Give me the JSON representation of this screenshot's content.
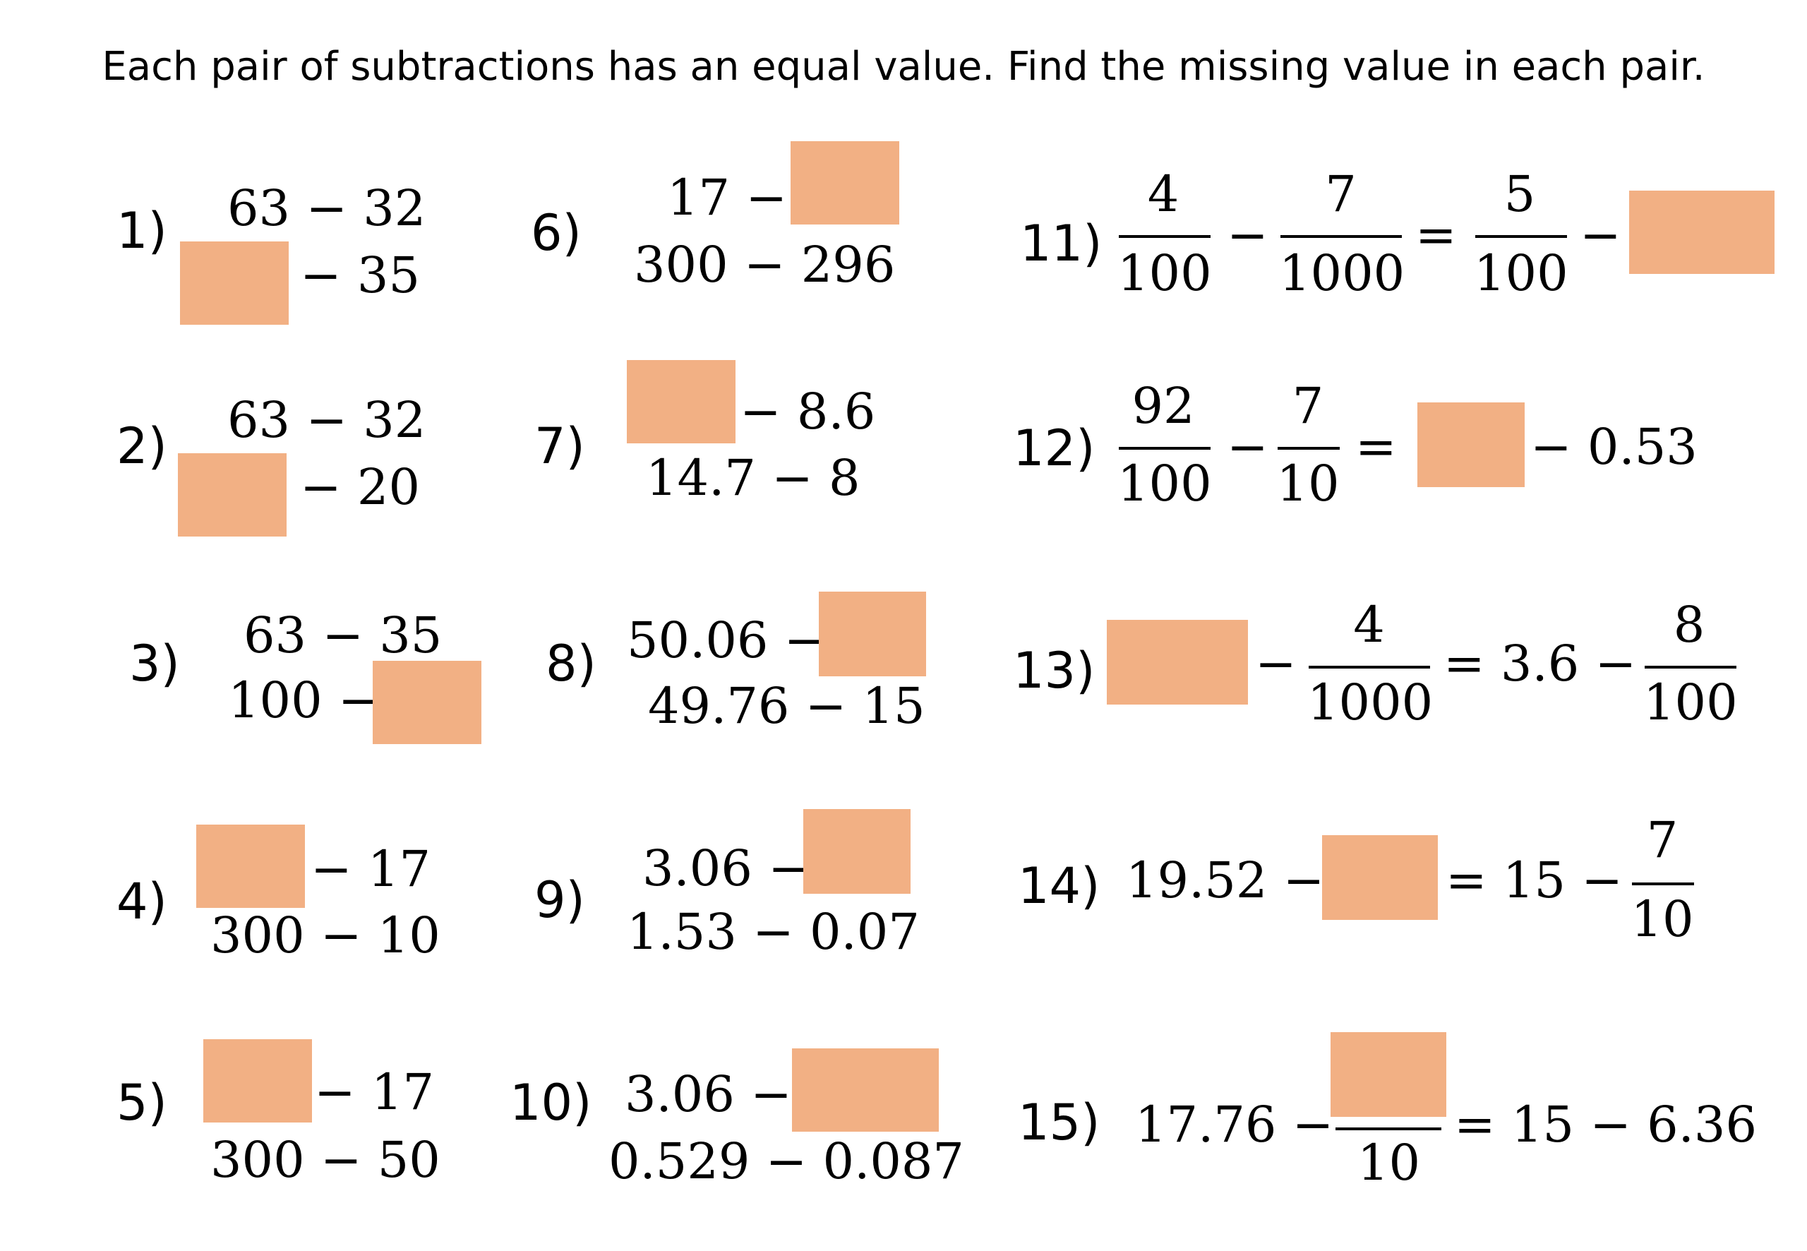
{
  "instructions": "Each pair of subtractions has an equal value. Find the missing value in each pair.",
  "colors": {
    "answer_box": "#f2b084",
    "text": "#000000"
  },
  "problems": [
    {
      "label": "1)",
      "top": "63 − 32",
      "bottom": "− 35"
    },
    {
      "label": "2)",
      "top": "63 − 32",
      "bottom": "− 20"
    },
    {
      "label": "3)",
      "top": "63 − 35",
      "bottom": "100 −"
    },
    {
      "label": "4)",
      "top": "− 17",
      "bottom": "300 − 10"
    },
    {
      "label": "5)",
      "top": "− 17",
      "bottom": "300 − 50"
    },
    {
      "label": "6)",
      "top": "17 −",
      "bottom": "300 − 296"
    },
    {
      "label": "7)",
      "top": "− 8.6",
      "bottom": "14.7 − 8"
    },
    {
      "label": "8)",
      "top": "50.06 −",
      "bottom": "49.76 − 15"
    },
    {
      "label": "9)",
      "top": "3.06 −",
      "bottom": "1.53 − 0.07"
    },
    {
      "label": "10)",
      "top": "3.06 −",
      "bottom": "0.529 − 0.087"
    },
    {
      "label": "11)",
      "f1": {
        "num": "4",
        "den": "100"
      },
      "op1": "−",
      "f2": {
        "num": "7",
        "den": "1000"
      },
      "eq": "=",
      "f3": {
        "num": "5",
        "den": "100"
      },
      "op2": "−"
    },
    {
      "label": "12)",
      "f1": {
        "num": "92",
        "den": "100"
      },
      "op1": "−",
      "f2": {
        "num": "7",
        "den": "10"
      },
      "eq": "=",
      "tail": "− 0.53"
    },
    {
      "label": "13)",
      "op1": "−",
      "f1": {
        "num": "4",
        "den": "1000"
      },
      "eq": "= 3.6 −",
      "f2": {
        "num": "8",
        "den": "100"
      }
    },
    {
      "label": "14)",
      "lead": "19.52 −",
      "eq": "= 15 −",
      "f1": {
        "num": "7",
        "den": "10"
      }
    },
    {
      "label": "15)",
      "lead": "17.76 −",
      "den": "10",
      "eq": "= 15 − 6.36"
    }
  ]
}
